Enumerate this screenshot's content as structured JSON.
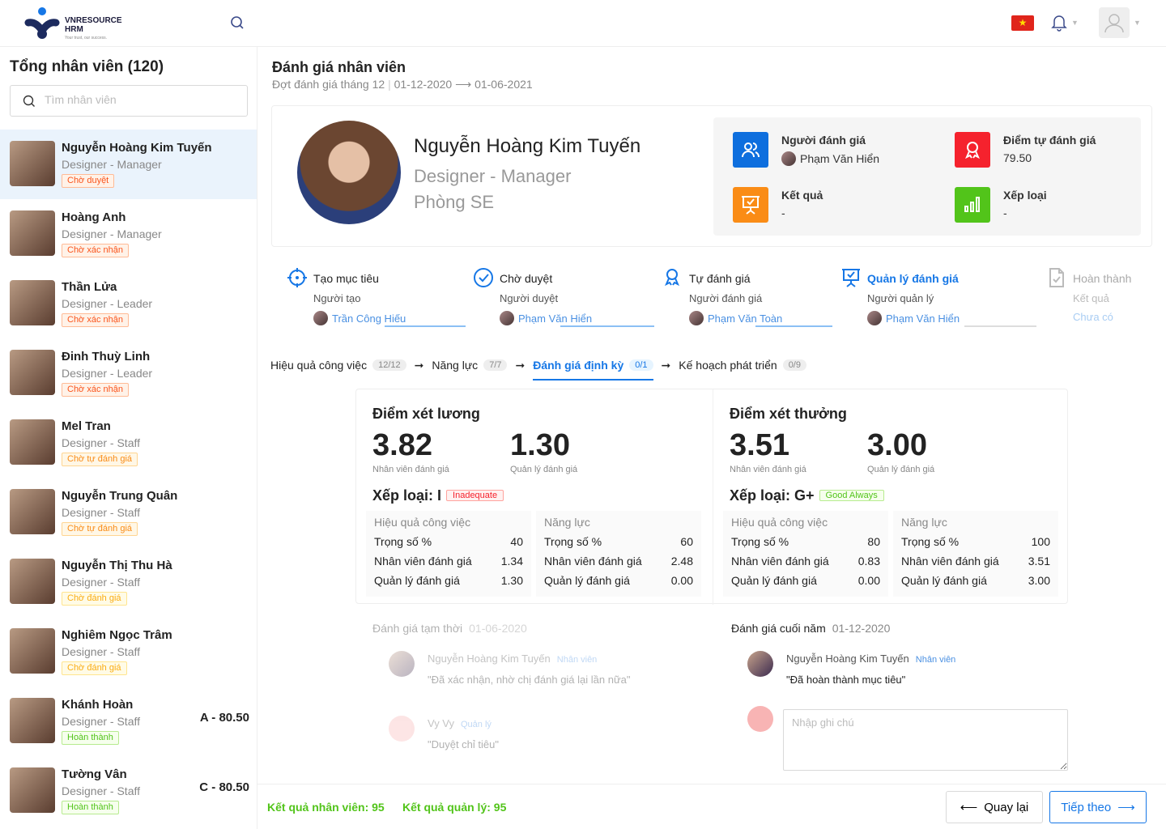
{
  "header": {
    "brand": "VNRESOURCE",
    "brand2": "HRM",
    "tagline": "Your trust, our success.",
    "flag": "★"
  },
  "sidebar": {
    "title": "Tổng nhân viên (120)",
    "search_placeholder": "Tìm nhân viên",
    "employees": [
      {
        "name": "Nguyễn Hoàng Kim Tuyến",
        "role": "Designer - Manager",
        "status": "Chờ duyệt",
        "status_color": "red",
        "selected": true
      },
      {
        "name": "Hoàng Anh",
        "role": "Designer - Manager",
        "status": "Chờ xác nhận",
        "status_color": "red"
      },
      {
        "name": "Thần Lửa",
        "role": "Designer - Leader",
        "status": "Chờ xác nhận",
        "status_color": "red"
      },
      {
        "name": "Đinh Thuỳ Linh",
        "role": "Designer - Leader",
        "status": "Chờ xác nhận",
        "status_color": "red"
      },
      {
        "name": "Mel Tran",
        "role": "Designer - Staff",
        "status": "Chờ tự đánh giá",
        "status_color": "orange"
      },
      {
        "name": "Nguyễn Trung Quân",
        "role": "Designer - Staff",
        "status": "Chờ tự đánh giá",
        "status_color": "orange"
      },
      {
        "name": "Nguyễn Thị Thu Hà",
        "role": "Designer - Staff",
        "status": "Chờ đánh giá",
        "status_color": "gold"
      },
      {
        "name": "Nghiêm Ngọc Trâm",
        "role": "Designer - Staff",
        "status": "Chờ đánh giá",
        "status_color": "gold"
      },
      {
        "name": "Khánh Hoàn",
        "role": "Designer - Staff",
        "status": "Hoàn thành",
        "status_color": "green",
        "score": "A - 80.50"
      },
      {
        "name": "Tường Vân",
        "role": "Designer - Staff",
        "status": "Hoàn thành",
        "status_color": "green",
        "score": "C - 80.50"
      }
    ]
  },
  "main": {
    "title": "Đánh giá nhân viên",
    "period": "Đợt đánh giá tháng 12",
    "date_range": "01-12-2020 ⟶ 01-06-2021",
    "profile": {
      "name": "Nguyễn Hoàng Kim Tuyến",
      "role": "Designer - Manager",
      "dept": "Phòng SE"
    },
    "info": [
      {
        "label": "Người đánh giá",
        "value": "Phạm Văn Hiển",
        "icon": "users-icon",
        "color": "#0e6fde"
      },
      {
        "label": "Điểm tự đánh giá",
        "value": "79.50",
        "icon": "award-icon",
        "color": "#f5222d"
      },
      {
        "label": "Kết quả",
        "value": "-",
        "icon": "presentation-icon",
        "color": "#fa8c16"
      },
      {
        "label": "Xếp loại",
        "value": "-",
        "icon": "bar-chart-icon",
        "color": "#52c41a"
      }
    ],
    "steps": [
      {
        "title": "Tạo mục tiêu",
        "role": "Người tạo",
        "person": "Trần Công Hiếu",
        "icon": "target-icon"
      },
      {
        "title": "Chờ duyệt",
        "role": "Người duyệt",
        "person": "Phạm Văn Hiển",
        "icon": "check-circle-icon"
      },
      {
        "title": "Tự đánh giá",
        "role": "Người đánh giá",
        "person": "Phạm Văn Toàn",
        "icon": "award-icon"
      },
      {
        "title": "Quản lý đánh giá",
        "role": "Người quản lý",
        "person": "Phạm Văn Hiển",
        "icon": "presentation-icon",
        "active": true
      },
      {
        "title": "Hoàn thành",
        "role": "Kết quả",
        "person": "Chưa có",
        "icon": "file-check-icon",
        "disabled": true
      }
    ],
    "tabs": [
      {
        "label": "Hiệu quả công việc",
        "count": "12/12"
      },
      {
        "label": "Năng lực",
        "count": "7/7"
      },
      {
        "label": "Đánh giá định kỳ",
        "count": "0/1",
        "active": true
      },
      {
        "label": "Kế hoạch phát triển",
        "count": "0/9"
      }
    ],
    "scores": [
      {
        "title": "Điểm xét lương",
        "emp_score": "3.82",
        "emp_caption": "Nhân viên đánh giá",
        "mgr_score": "1.30",
        "mgr_caption": "Quản lý đánh giá",
        "rank": "Xếp loại: I",
        "rank_tag": "Inadequate",
        "rank_color": "red",
        "tables": [
          {
            "title": "Hiệu quả công việc",
            "rows": [
              [
                "Trọng số %",
                "40"
              ],
              [
                "Nhân viên đánh giá",
                "1.34"
              ],
              [
                "Quản lý đánh giá",
                "1.30"
              ]
            ]
          },
          {
            "title": "Năng lực",
            "rows": [
              [
                "Trọng số %",
                "60"
              ],
              [
                "Nhân viên đánh giá",
                "2.48"
              ],
              [
                "Quản lý đánh giá",
                "0.00"
              ]
            ]
          }
        ]
      },
      {
        "title": "Điểm xét thưởng",
        "emp_score": "3.51",
        "emp_caption": "Nhân viên đánh giá",
        "mgr_score": "3.00",
        "mgr_caption": "Quản lý đánh giá",
        "rank": "Xếp loại: G+",
        "rank_tag": "Good Always",
        "rank_color": "green",
        "tables": [
          {
            "title": "Hiệu quả công việc",
            "rows": [
              [
                "Trọng số %",
                "80"
              ],
              [
                "Nhân viên đánh giá",
                "0.83"
              ],
              [
                "Quản lý đánh giá",
                "0.00"
              ]
            ]
          },
          {
            "title": "Năng lực",
            "rows": [
              [
                "Trọng số %",
                "100"
              ],
              [
                "Nhân viên đánh giá",
                "3.51"
              ],
              [
                "Quản lý đánh giá",
                "3.00"
              ]
            ]
          }
        ]
      }
    ],
    "comments": [
      {
        "title": "Đánh giá tạm thời",
        "date": "01-06-2020",
        "faded": true,
        "entries": [
          {
            "name": "Nguyễn Hoàng Kim Tuyến",
            "role": "Nhân viên",
            "text": "\"Đã xác nhận, nhờ chị đánh giá lại lần nữa\""
          },
          {
            "name": "Vy Vy",
            "role": "Quản lý",
            "text": "\"Duyệt chỉ tiêu\""
          }
        ]
      },
      {
        "title": "Đánh giá cuối năm",
        "date": "01-12-2020",
        "entries": [
          {
            "name": "Nguyễn Hoàng Kim Tuyến",
            "role": "Nhân viên",
            "text": "\"Đã hoàn thành mục tiêu\""
          }
        ]
      }
    ],
    "note_placeholder": "Nhập ghi chú",
    "footer": {
      "emp_result": "Kết quả nhân viên: 95",
      "mgr_result": "Kết quả quản lý: 95",
      "back": "Quay lại",
      "next": "Tiếp theo"
    }
  }
}
